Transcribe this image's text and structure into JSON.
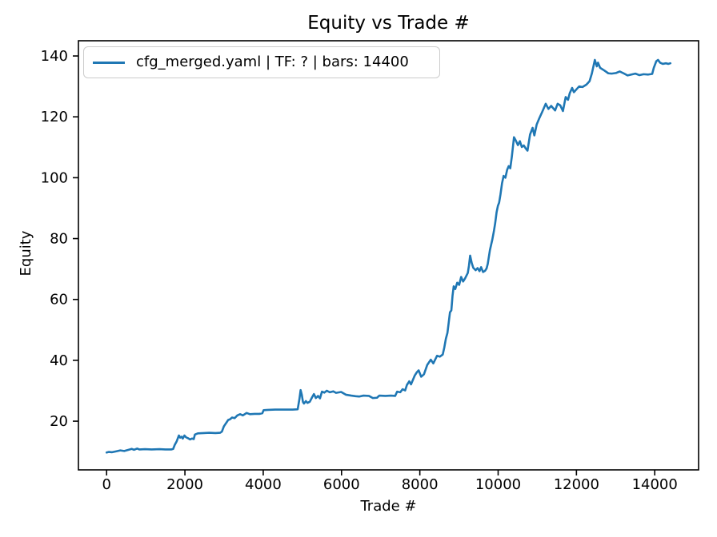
{
  "figure": {
    "title": "Equity vs Trade #",
    "xlabel": "Trade #",
    "ylabel": "Equity",
    "legend": {
      "label": "cfg_merged.yaml | TF: ? | bars: 14400",
      "line_color": "#1f77b4"
    }
  },
  "chart_data": {
    "type": "line",
    "title": "Equity vs Trade #",
    "xlabel": "Trade #",
    "ylabel": "Equity",
    "grid": false,
    "legend_position": "upper left",
    "xlim": [
      -720,
      15120
    ],
    "ylim": [
      4,
      145
    ],
    "xticks": [
      0,
      2000,
      4000,
      6000,
      8000,
      10000,
      12000,
      14000
    ],
    "yticks": [
      20,
      40,
      60,
      80,
      100,
      120,
      140
    ],
    "axis_color": "#000000",
    "series": [
      {
        "name": "cfg_merged.yaml | TF: ? | bars: 14400",
        "color": "#1f77b4",
        "points": [
          [
            0,
            9.7
          ],
          [
            60,
            9.9
          ],
          [
            140,
            9.8
          ],
          [
            250,
            10.1
          ],
          [
            350,
            10.4
          ],
          [
            450,
            10.2
          ],
          [
            560,
            10.6
          ],
          [
            640,
            10.9
          ],
          [
            700,
            10.6
          ],
          [
            780,
            11.0
          ],
          [
            840,
            10.7
          ],
          [
            980,
            10.8
          ],
          [
            1150,
            10.7
          ],
          [
            1350,
            10.8
          ],
          [
            1500,
            10.7
          ],
          [
            1650,
            10.7
          ],
          [
            1700,
            10.9
          ],
          [
            1740,
            12.2
          ],
          [
            1790,
            13.4
          ],
          [
            1846,
            15.3
          ],
          [
            1880,
            14.6
          ],
          [
            1915,
            14.9
          ],
          [
            1945,
            14.3
          ],
          [
            1988,
            15.3
          ],
          [
            2030,
            14.7
          ],
          [
            2080,
            14.4
          ],
          [
            2130,
            14.0
          ],
          [
            2180,
            14.3
          ],
          [
            2225,
            14.1
          ],
          [
            2255,
            15.6
          ],
          [
            2330,
            16.0
          ],
          [
            2480,
            16.1
          ],
          [
            2620,
            16.2
          ],
          [
            2780,
            16.1
          ],
          [
            2900,
            16.2
          ],
          [
            2945,
            16.6
          ],
          [
            2995,
            18.3
          ],
          [
            3063,
            19.6
          ],
          [
            3105,
            20.4
          ],
          [
            3150,
            20.6
          ],
          [
            3205,
            21.2
          ],
          [
            3270,
            21.0
          ],
          [
            3340,
            21.9
          ],
          [
            3410,
            22.3
          ],
          [
            3480,
            21.9
          ],
          [
            3577,
            22.7
          ],
          [
            3660,
            22.3
          ],
          [
            3780,
            22.4
          ],
          [
            3900,
            22.4
          ],
          [
            3977,
            22.6
          ],
          [
            4010,
            23.6
          ],
          [
            4120,
            23.7
          ],
          [
            4300,
            23.8
          ],
          [
            4550,
            23.8
          ],
          [
            4750,
            23.8
          ],
          [
            4880,
            23.9
          ],
          [
            4925,
            27.3
          ],
          [
            4955,
            30.2
          ],
          [
            4985,
            28.7
          ],
          [
            5015,
            26.3
          ],
          [
            5040,
            25.8
          ],
          [
            5090,
            26.6
          ],
          [
            5130,
            26.0
          ],
          [
            5190,
            26.4
          ],
          [
            5250,
            27.9
          ],
          [
            5295,
            28.9
          ],
          [
            5345,
            27.6
          ],
          [
            5400,
            28.3
          ],
          [
            5450,
            27.5
          ],
          [
            5500,
            29.7
          ],
          [
            5560,
            29.4
          ],
          [
            5625,
            30.0
          ],
          [
            5700,
            29.5
          ],
          [
            5790,
            29.8
          ],
          [
            5860,
            29.3
          ],
          [
            5990,
            29.6
          ],
          [
            6110,
            28.7
          ],
          [
            6250,
            28.4
          ],
          [
            6360,
            28.2
          ],
          [
            6450,
            28.1
          ],
          [
            6560,
            28.4
          ],
          [
            6700,
            28.3
          ],
          [
            6800,
            27.6
          ],
          [
            6905,
            27.7
          ],
          [
            6965,
            28.4
          ],
          [
            7120,
            28.3
          ],
          [
            7260,
            28.4
          ],
          [
            7370,
            28.3
          ],
          [
            7420,
            29.7
          ],
          [
            7500,
            29.5
          ],
          [
            7560,
            30.5
          ],
          [
            7625,
            30.1
          ],
          [
            7670,
            31.9
          ],
          [
            7730,
            33.1
          ],
          [
            7775,
            32.1
          ],
          [
            7870,
            35.0
          ],
          [
            7925,
            36.1
          ],
          [
            7970,
            36.7
          ],
          [
            8035,
            34.6
          ],
          [
            8105,
            35.4
          ],
          [
            8190,
            38.5
          ],
          [
            8280,
            40.2
          ],
          [
            8345,
            39.0
          ],
          [
            8440,
            41.5
          ],
          [
            8510,
            41.2
          ],
          [
            8585,
            41.9
          ],
          [
            8625,
            44.2
          ],
          [
            8665,
            47.1
          ],
          [
            8705,
            49.0
          ],
          [
            8735,
            52.1
          ],
          [
            8770,
            55.8
          ],
          [
            8805,
            56.4
          ],
          [
            8835,
            61.2
          ],
          [
            8865,
            64.3
          ],
          [
            8905,
            63.4
          ],
          [
            8955,
            65.5
          ],
          [
            9005,
            64.8
          ],
          [
            9055,
            67.4
          ],
          [
            9105,
            65.9
          ],
          [
            9155,
            66.9
          ],
          [
            9225,
            68.7
          ],
          [
            9255,
            71.1
          ],
          [
            9285,
            74.4
          ],
          [
            9325,
            72.0
          ],
          [
            9365,
            70.4
          ],
          [
            9425,
            69.6
          ],
          [
            9475,
            70.3
          ],
          [
            9525,
            69.3
          ],
          [
            9565,
            70.6
          ],
          [
            9615,
            69.0
          ],
          [
            9665,
            69.4
          ],
          [
            9705,
            70.2
          ],
          [
            9735,
            71.7
          ],
          [
            9790,
            76.2
          ],
          [
            9850,
            79.6
          ],
          [
            9890,
            82.3
          ],
          [
            9925,
            85.1
          ],
          [
            9960,
            88.6
          ],
          [
            9995,
            90.8
          ],
          [
            10025,
            91.8
          ],
          [
            10060,
            94.5
          ],
          [
            10100,
            98.2
          ],
          [
            10140,
            100.6
          ],
          [
            10185,
            100.0
          ],
          [
            10230,
            102.6
          ],
          [
            10270,
            103.8
          ],
          [
            10310,
            103.1
          ],
          [
            10350,
            106.9
          ],
          [
            10405,
            113.3
          ],
          [
            10455,
            112.1
          ],
          [
            10505,
            110.7
          ],
          [
            10555,
            112.0
          ],
          [
            10605,
            110.1
          ],
          [
            10655,
            110.6
          ],
          [
            10705,
            109.6
          ],
          [
            10750,
            108.9
          ],
          [
            10815,
            114.2
          ],
          [
            10880,
            116.4
          ],
          [
            10925,
            113.9
          ],
          [
            10985,
            117.5
          ],
          [
            11050,
            119.5
          ],
          [
            11125,
            121.6
          ],
          [
            11215,
            124.3
          ],
          [
            11285,
            122.6
          ],
          [
            11355,
            123.6
          ],
          [
            11455,
            122.1
          ],
          [
            11520,
            124.3
          ],
          [
            11585,
            123.8
          ],
          [
            11655,
            121.9
          ],
          [
            11725,
            126.5
          ],
          [
            11785,
            125.6
          ],
          [
            11830,
            127.8
          ],
          [
            11890,
            129.5
          ],
          [
            11935,
            128.1
          ],
          [
            12005,
            129.1
          ],
          [
            12070,
            130.0
          ],
          [
            12155,
            129.8
          ],
          [
            12255,
            130.6
          ],
          [
            12335,
            131.7
          ],
          [
            12395,
            134.3
          ],
          [
            12470,
            138.7
          ],
          [
            12520,
            136.6
          ],
          [
            12550,
            137.8
          ],
          [
            12605,
            136.1
          ],
          [
            12715,
            135.2
          ],
          [
            12815,
            134.3
          ],
          [
            12900,
            134.2
          ],
          [
            13010,
            134.4
          ],
          [
            13105,
            134.9
          ],
          [
            13205,
            134.3
          ],
          [
            13305,
            133.6
          ],
          [
            13405,
            133.9
          ],
          [
            13505,
            134.2
          ],
          [
            13610,
            133.7
          ],
          [
            13715,
            134.0
          ],
          [
            13835,
            133.9
          ],
          [
            13935,
            134.1
          ],
          [
            13975,
            136.1
          ],
          [
            14040,
            138.3
          ],
          [
            14085,
            138.7
          ],
          [
            14135,
            137.8
          ],
          [
            14205,
            137.4
          ],
          [
            14285,
            137.6
          ],
          [
            14345,
            137.4
          ],
          [
            14400,
            137.6
          ]
        ]
      }
    ]
  }
}
